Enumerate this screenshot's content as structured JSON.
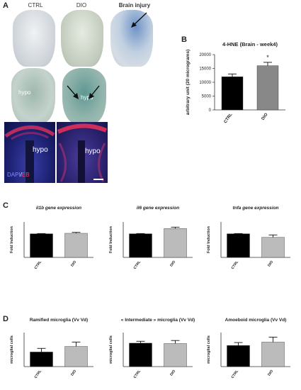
{
  "panel_a": {
    "letter": "A",
    "col_labels": [
      "CTRL",
      "DIO",
      "Brain injury"
    ],
    "hypo_labels": [
      "hypo",
      "hypo",
      "hypo",
      "hypo"
    ],
    "stain_legend": {
      "dapi": "DAPI",
      "sep": "/",
      "eb": "EB"
    }
  },
  "panel_b": {
    "letter": "B"
  },
  "panel_c": {
    "letter": "C"
  },
  "panel_d": {
    "letter": "D"
  },
  "chart_data": [
    {
      "id": "hne",
      "type": "bar",
      "title": "4-HNE (Brain - week4)",
      "ylabel": "arbitrary unit (20 micrograms)",
      "categories": [
        "CTRL",
        "DIO"
      ],
      "values": [
        12000,
        16000
      ],
      "errors": [
        1000,
        1200
      ],
      "yticks": [
        0,
        5000,
        10000,
        15000,
        20000
      ],
      "ylim": [
        0,
        20000
      ],
      "colors": [
        "#000000",
        "#888888"
      ],
      "annotation": "*"
    },
    {
      "id": "il1b",
      "type": "bar",
      "title": "il1b gene expression",
      "ylabel": "Fold Induction",
      "categories": [
        "CTRL",
        "DIO"
      ],
      "values": [
        1.0,
        1.02
      ],
      "errors": [
        0.01,
        0.04
      ],
      "ylim": [
        0,
        1.5
      ],
      "colors": [
        "#000000",
        "#bbbbbb"
      ]
    },
    {
      "id": "il6",
      "type": "bar",
      "title": "il6 gene expression",
      "ylabel": "Fold Induction",
      "categories": [
        "CTRL",
        "DIO"
      ],
      "values": [
        1.0,
        1.22
      ],
      "errors": [
        0.01,
        0.06
      ],
      "ylim": [
        0,
        1.5
      ],
      "colors": [
        "#000000",
        "#bbbbbb"
      ]
    },
    {
      "id": "tnfa",
      "type": "bar",
      "title": "tnfa gene expression",
      "ylabel": "Fold Induction",
      "categories": [
        "CTRL",
        "DIO"
      ],
      "values": [
        1.0,
        0.85
      ],
      "errors": [
        0.01,
        0.1
      ],
      "ylim": [
        0,
        1.5
      ],
      "colors": [
        "#000000",
        "#bbbbbb"
      ]
    },
    {
      "id": "ramified",
      "type": "bar",
      "title": "Ramified microglia (Vv Vd)",
      "ylabel": "microglial cells",
      "categories": [
        "CTRL",
        "DIO"
      ],
      "values": [
        6.0,
        8.3
      ],
      "errors": [
        1.5,
        1.8
      ],
      "ylim": [
        0,
        14
      ],
      "colors": [
        "#000000",
        "#bbbbbb"
      ]
    },
    {
      "id": "intermediate",
      "type": "bar",
      "title": "« Intermediate » microglia (Vv Vd)",
      "ylabel": "microglial cells",
      "categories": [
        "CTRL",
        "DIO"
      ],
      "values": [
        6.2,
        6.1
      ],
      "errors": [
        0.5,
        0.8
      ],
      "ylim": [
        0,
        9
      ],
      "colors": [
        "#000000",
        "#bbbbbb"
      ]
    },
    {
      "id": "amoeboid",
      "type": "bar",
      "title": "Amoeboid microglia (Vv Vd)",
      "ylabel": "microglial cells",
      "categories": [
        "CTRL",
        "DIO"
      ],
      "values": [
        9.3,
        10.8
      ],
      "errors": [
        1.3,
        2.2
      ],
      "ylim": [
        0,
        15
      ],
      "colors": [
        "#000000",
        "#bbbbbb"
      ]
    }
  ]
}
